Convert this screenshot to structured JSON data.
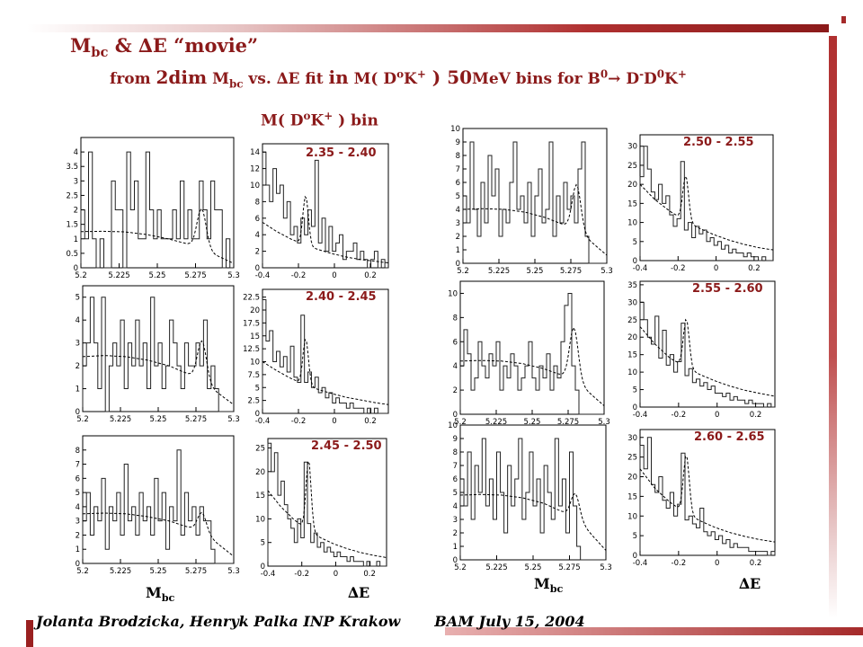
{
  "slide": {
    "title": "Mbc & ΔE \"movie\"",
    "title_parts": {
      "m": "M",
      "m_sub": "bc",
      "rest": " & ∆E “movie”"
    },
    "subtitle_parts": {
      "a": "from ",
      "b": "2dim",
      "c": " M",
      "c_sub": "bc",
      "d": " vs. ∆E   fit   ",
      "e": "in",
      "f": " M( D",
      "f_sup": "o",
      "g": "K",
      "g_sup": "+",
      "h": " )  ",
      "i": "50",
      "j": "MeV bins  for B",
      "j_sup": "0",
      "k": "→ D",
      "k_sup": "-",
      "l": "D",
      "l_sup": "0",
      "m2": "K",
      "m2_sup": "+"
    },
    "bin_header": {
      "a": "M( D",
      "a_sup": "o",
      "b": "K",
      "b_sup": "+",
      "c": " ) bin"
    },
    "axis_labels": {
      "mbc": "M",
      "mbc_sub": "bc",
      "de": "∆E"
    },
    "footer": {
      "authors": "Jolanta Brodzicka, Henryk Palka  INP Krakow",
      "event": "BAM   July 15, 2004"
    },
    "colors": {
      "accent": "#8b1a1a",
      "bar_dark": "#a52a2a",
      "bar_light": "#e8c8c8"
    }
  },
  "chart_data": [
    {
      "type": "histogram",
      "variable": "Mbc",
      "bin": "",
      "ylim": [
        0,
        4.5
      ],
      "xlim": [
        5.2,
        5.3
      ],
      "xticks": [
        "5.2",
        "5.225",
        "5.25",
        "5.275",
        "5.3"
      ],
      "yticks": [
        "0",
        "0.5",
        "1",
        "1.5",
        "2",
        "2.5",
        "3",
        "3.5",
        "4"
      ],
      "values": [
        2,
        1,
        4,
        1,
        0,
        1,
        0,
        0,
        3,
        2,
        2,
        0,
        4,
        2,
        3,
        1,
        1,
        4,
        2,
        1,
        2,
        1,
        1,
        1,
        2,
        1,
        3,
        1,
        2,
        1,
        1,
        3,
        2,
        1,
        3,
        2,
        2,
        0,
        1,
        0
      ],
      "fit_bg": [
        1.25,
        1.26,
        1.24,
        1.15,
        1.0,
        0.8,
        0.5,
        0.15
      ],
      "fit_peak": {
        "x": 5.279,
        "height": 1.4,
        "width": 0.003
      }
    },
    {
      "type": "histogram",
      "variable": "ΔE",
      "bin": "2.35 - 2.40",
      "ylim": [
        0,
        15
      ],
      "xlim": [
        -0.4,
        0.3
      ],
      "xticks": [
        "-0.4",
        "-0.2",
        "0",
        "0.2"
      ],
      "yticks": [
        "0",
        "2",
        "4",
        "6",
        "8",
        "10",
        "12",
        "14"
      ],
      "values": [
        14,
        10,
        8,
        12,
        9,
        10,
        6,
        8,
        4,
        5,
        3,
        6,
        4,
        7,
        5,
        13,
        3,
        6,
        2,
        5,
        2,
        3,
        4,
        1,
        2,
        2,
        3,
        1,
        2,
        1,
        0,
        1,
        2,
        0,
        1,
        0
      ],
      "fit_bg": [
        5.5,
        4.4,
        3.5,
        2.8,
        2.2,
        1.7,
        1.3,
        1.0,
        0.8,
        0.6
      ],
      "fit_peak": {
        "x": -0.16,
        "height": 6,
        "width": 0.015
      }
    },
    {
      "type": "histogram",
      "variable": "Mbc",
      "bin": "",
      "ylim": [
        0,
        10
      ],
      "xlim": [
        5.2,
        5.3
      ],
      "xticks": [
        "5.2",
        "5.225",
        "5.25",
        "5.275",
        "5.3"
      ],
      "yticks": [
        "0",
        "1",
        "2",
        "3",
        "4",
        "5",
        "6",
        "7",
        "8",
        "9",
        "10"
      ],
      "values": [
        5,
        3,
        9,
        4,
        2,
        6,
        3,
        8,
        5,
        7,
        2,
        4,
        3,
        6,
        9,
        4,
        5,
        3,
        6,
        2,
        5,
        7,
        3,
        4,
        9,
        2,
        5,
        3,
        6,
        4,
        5,
        3,
        7,
        9,
        2,
        0,
        0,
        0,
        0,
        0
      ],
      "fit_bg": [
        4.0,
        4.05,
        4.0,
        3.8,
        3.4,
        2.8,
        1.9,
        0.6
      ],
      "fit_peak": {
        "x": 5.279,
        "height": 3.5,
        "width": 0.003
      }
    },
    {
      "type": "histogram",
      "variable": "ΔE",
      "bin": "2.50 - 2.55",
      "ylim": [
        0,
        33
      ],
      "xlim": [
        -0.4,
        0.3
      ],
      "xticks": [
        "-0.4",
        "-0.2",
        "0",
        "0.2"
      ],
      "yticks": [
        "0",
        "5",
        "10",
        "15",
        "20",
        "25",
        "30"
      ],
      "values": [
        22,
        30,
        24,
        18,
        16,
        20,
        15,
        17,
        12,
        9,
        11,
        26,
        8,
        10,
        6,
        9,
        7,
        8,
        5,
        6,
        4,
        5,
        3,
        4,
        2,
        3,
        2,
        2,
        1,
        2,
        1,
        1,
        0,
        1,
        0,
        0
      ],
      "fit_bg": [
        20,
        16,
        13,
        10.5,
        8.5,
        6.8,
        5.4,
        4.3,
        3.4,
        2.8
      ],
      "fit_peak": {
        "x": -0.16,
        "height": 12,
        "width": 0.015
      }
    },
    {
      "type": "histogram",
      "variable": "Mbc",
      "bin": "",
      "ylim": [
        0,
        5.5
      ],
      "xlim": [
        5.2,
        5.3
      ],
      "xticks": [
        "5.2",
        "5.225",
        "5.25",
        "5.275",
        "5.3"
      ],
      "yticks": [
        "0",
        "1",
        "2",
        "3",
        "4",
        "5"
      ],
      "values": [
        2,
        3,
        5,
        3,
        1,
        5,
        0,
        2,
        3,
        2,
        4,
        1,
        3,
        2,
        4,
        2,
        3,
        1,
        5,
        2,
        3,
        1,
        2,
        4,
        3,
        2,
        1,
        3,
        2,
        2,
        3,
        2,
        4,
        1,
        2,
        1,
        0,
        0,
        0,
        0
      ],
      "fit_bg": [
        2.4,
        2.45,
        2.4,
        2.25,
        2.0,
        1.6,
        1.0,
        0.3
      ],
      "fit_peak": {
        "x": 5.279,
        "height": 1.8,
        "width": 0.003
      }
    },
    {
      "type": "histogram",
      "variable": "ΔE",
      "bin": "2.40 - 2.45",
      "ylim": [
        0,
        24
      ],
      "xlim": [
        -0.4,
        0.3
      ],
      "xticks": [
        "-0.4",
        "-0.2",
        "0",
        "0.2"
      ],
      "yticks": [
        "0",
        "2.5",
        "5",
        "7.5",
        "10",
        "12.5",
        "15",
        "17.5",
        "20",
        "22.5"
      ],
      "values": [
        22,
        14,
        16,
        10,
        12,
        9,
        11,
        8,
        13,
        7,
        6,
        19,
        6,
        8,
        5,
        7,
        4,
        5,
        3,
        4,
        2,
        3,
        2,
        2,
        1,
        2,
        1,
        1,
        1,
        0,
        1,
        0,
        1,
        0,
        0,
        0
      ],
      "fit_bg": [
        10,
        8.3,
        6.8,
        5.6,
        4.6,
        3.8,
        3.1,
        2.6,
        2.1,
        1.7
      ],
      "fit_peak": {
        "x": -0.16,
        "height": 9,
        "width": 0.015
      }
    },
    {
      "type": "histogram",
      "variable": "Mbc",
      "bin": "",
      "ylim": [
        0,
        11
      ],
      "xlim": [
        5.2,
        5.3
      ],
      "xticks": [
        "5.2",
        "5.225",
        "5.25",
        "5.275",
        "5.3"
      ],
      "yticks": [
        "0",
        "2",
        "4",
        "6",
        "8",
        "10"
      ],
      "values": [
        4,
        7,
        5,
        2,
        3,
        6,
        4,
        3,
        5,
        4,
        6,
        2,
        4,
        3,
        5,
        4,
        2,
        3,
        4,
        6,
        3,
        2,
        4,
        3,
        5,
        2,
        4,
        3,
        6,
        9,
        10,
        4,
        2,
        0,
        0,
        0,
        0,
        0,
        0,
        0
      ],
      "fit_bg": [
        4.4,
        4.45,
        4.4,
        4.2,
        3.8,
        3.2,
        2.2,
        0.7
      ],
      "fit_peak": {
        "x": 5.279,
        "height": 4.5,
        "width": 0.003
      }
    },
    {
      "type": "histogram",
      "variable": "ΔE",
      "bin": "2.55 - 2.60",
      "ylim": [
        0,
        36
      ],
      "xlim": [
        -0.4,
        0.3
      ],
      "xticks": [
        "-0.4",
        "-0.2",
        "0",
        "0.2"
      ],
      "yticks": [
        "0",
        "5",
        "10",
        "15",
        "20",
        "25",
        "30",
        "35"
      ],
      "values": [
        30,
        25,
        20,
        18,
        26,
        14,
        22,
        12,
        15,
        10,
        13,
        24,
        9,
        11,
        7,
        8,
        6,
        7,
        5,
        6,
        4,
        4,
        3,
        4,
        2,
        3,
        2,
        2,
        1,
        2,
        1,
        1,
        1,
        0,
        1,
        0
      ],
      "fit_bg": [
        23,
        18,
        14,
        11.5,
        9.3,
        7.5,
        6.0,
        4.8,
        3.9,
        3.1
      ],
      "fit_peak": {
        "x": -0.16,
        "height": 14,
        "width": 0.015
      }
    },
    {
      "type": "histogram",
      "variable": "Mbc",
      "bin": "",
      "ylim": [
        0,
        9
      ],
      "xlim": [
        5.2,
        5.3
      ],
      "xticks": [
        "5.2",
        "5.225",
        "5.25",
        "5.275",
        "5.3"
      ],
      "yticks": [
        "0",
        "1",
        "2",
        "3",
        "4",
        "5",
        "6",
        "7",
        "8"
      ],
      "values": [
        3,
        5,
        2,
        4,
        3,
        6,
        1,
        4,
        3,
        5,
        2,
        7,
        3,
        4,
        2,
        5,
        3,
        4,
        2,
        6,
        3,
        5,
        1,
        4,
        3,
        8,
        2,
        5,
        3,
        4,
        2,
        4,
        3,
        3,
        1,
        0,
        0,
        0,
        0,
        0
      ],
      "fit_bg": [
        3.5,
        3.55,
        3.5,
        3.3,
        3.0,
        2.5,
        1.7,
        0.5
      ],
      "fit_peak": {
        "x": 5.279,
        "height": 1.5,
        "width": 0.003
      }
    },
    {
      "type": "histogram",
      "variable": "ΔE",
      "bin": "2.45 - 2.50",
      "ylim": [
        0,
        27
      ],
      "xlim": [
        -0.4,
        0.3
      ],
      "xticks": [
        "-0.4",
        "-0.2",
        "0",
        "0.2"
      ],
      "yticks": [
        "0",
        "5",
        "10",
        "15",
        "20",
        "25"
      ],
      "values": [
        26,
        20,
        24,
        15,
        18,
        13,
        10,
        8,
        5,
        10,
        6,
        22,
        9,
        5,
        7,
        4,
        5,
        3,
        4,
        3,
        2,
        3,
        2,
        2,
        1,
        2,
        1,
        1,
        1,
        0,
        1,
        0,
        0,
        1,
        0,
        0
      ],
      "fit_bg": [
        16,
        12.5,
        9.8,
        7.7,
        6.0,
        4.7,
        3.7,
        2.9,
        2.3,
        1.8
      ],
      "fit_peak": {
        "x": -0.16,
        "height": 15,
        "width": 0.015
      }
    },
    {
      "type": "histogram",
      "variable": "Mbc",
      "bin": "",
      "ylim": [
        0,
        10
      ],
      "xlim": [
        5.2,
        5.3
      ],
      "xticks": [
        "5.2",
        "5.225",
        "5.25",
        "5.275",
        "5.3"
      ],
      "yticks": [
        "0",
        "1",
        "2",
        "3",
        "4",
        "5",
        "6",
        "7",
        "8",
        "9",
        "10"
      ],
      "values": [
        6,
        4,
        8,
        3,
        7,
        5,
        9,
        4,
        6,
        3,
        8,
        5,
        2,
        7,
        4,
        6,
        9,
        3,
        5,
        8,
        4,
        6,
        2,
        7,
        5,
        3,
        9,
        4,
        6,
        2,
        8,
        4,
        1,
        0,
        0,
        0,
        0,
        0,
        0,
        0
      ],
      "fit_bg": [
        4.8,
        4.85,
        4.8,
        4.6,
        4.2,
        3.5,
        2.4,
        0.7
      ],
      "fit_peak": {
        "x": 5.279,
        "height": 2,
        "width": 0.003
      }
    },
    {
      "type": "histogram",
      "variable": "ΔE",
      "bin": "2.60 - 2.65",
      "ylim": [
        0,
        32
      ],
      "xlim": [
        -0.4,
        0.3
      ],
      "xticks": [
        "-0.4",
        "-0.2",
        "0",
        "0.2"
      ],
      "yticks": [
        "0",
        "5",
        "10",
        "15",
        "20",
        "25",
        "30"
      ],
      "values": [
        28,
        22,
        30,
        18,
        16,
        20,
        14,
        12,
        16,
        10,
        13,
        26,
        9,
        10,
        8,
        7,
        12,
        6,
        5,
        6,
        4,
        5,
        3,
        4,
        2,
        3,
        2,
        2,
        2,
        1,
        1,
        1,
        1,
        1,
        0,
        1
      ],
      "fit_bg": [
        22,
        17,
        13.5,
        10.8,
        8.8,
        7.1,
        5.8,
        4.8,
        4.0,
        3.4
      ],
      "fit_peak": {
        "x": -0.16,
        "height": 15,
        "width": 0.015
      }
    }
  ]
}
